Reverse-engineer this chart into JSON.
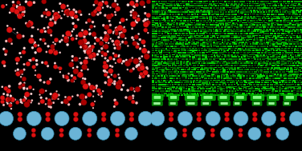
{
  "left_bg": "#ffffff",
  "right_bg": "#000000",
  "matrix_green_dark": "#006600",
  "matrix_green_mid": "#009900",
  "matrix_green_bright": "#00cc00",
  "oxygen_red": "#dd1111",
  "oxygen_dark_red": "#aa0000",
  "hydrogen_pink": "#ffbbbb",
  "hydrogen_light": "#ffdddd",
  "surface_blue": "#6ab4d6",
  "surface_blue_edge": "#3388aa",
  "surface_dark_red": "#990000",
  "fig_width": 3.76,
  "fig_height": 1.89,
  "dpi": 100
}
